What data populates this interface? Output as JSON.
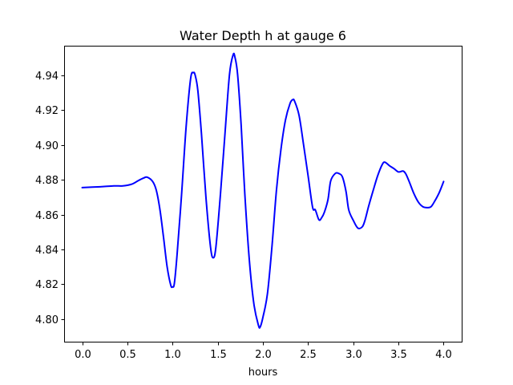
{
  "chart_data": {
    "type": "line",
    "title": "Water Depth h at gauge 6",
    "xlabel": "hours",
    "ylabel": "",
    "xlim": [
      -0.2,
      4.2
    ],
    "ylim": [
      4.787,
      4.957
    ],
    "xticks": [
      0.0,
      0.5,
      1.0,
      1.5,
      2.0,
      2.5,
      3.0,
      3.5,
      4.0
    ],
    "xtick_labels": [
      "0.0",
      "0.5",
      "1.0",
      "1.5",
      "2.0",
      "2.5",
      "3.0",
      "3.5",
      "4.0"
    ],
    "yticks": [
      4.8,
      4.82,
      4.84,
      4.86,
      4.88,
      4.9,
      4.92,
      4.94
    ],
    "ytick_labels": [
      "4.80",
      "4.82",
      "4.84",
      "4.86",
      "4.88",
      "4.90",
      "4.92",
      "4.94"
    ],
    "grid": false,
    "series": [
      {
        "color": "#0000ff",
        "x": [
          0.0,
          0.2,
          0.35,
          0.45,
          0.55,
          0.62,
          0.68,
          0.72,
          0.78,
          0.82,
          0.86,
          0.9,
          0.94,
          0.98,
          1.0,
          1.02,
          1.05,
          1.1,
          1.15,
          1.2,
          1.23,
          1.25,
          1.28,
          1.32,
          1.37,
          1.42,
          1.45,
          1.48,
          1.53,
          1.58,
          1.63,
          1.67,
          1.69,
          1.72,
          1.76,
          1.8,
          1.85,
          1.9,
          1.95,
          1.97,
          2.0,
          2.05,
          2.1,
          2.15,
          2.2,
          2.25,
          2.3,
          2.33,
          2.35,
          2.4,
          2.45,
          2.5,
          2.55,
          2.58,
          2.62,
          2.65,
          2.68,
          2.72,
          2.75,
          2.8,
          2.84,
          2.88,
          2.92,
          2.95,
          3.0,
          3.05,
          3.1,
          3.13,
          3.17,
          3.22,
          3.27,
          3.32,
          3.35,
          3.4,
          3.45,
          3.5,
          3.55,
          3.58,
          3.62,
          3.67,
          3.72,
          3.77,
          3.82,
          3.86,
          3.9,
          3.95,
          4.0
        ],
        "y": [
          4.8755,
          4.876,
          4.8765,
          4.8765,
          4.8775,
          4.8795,
          4.881,
          4.8815,
          4.879,
          4.874,
          4.863,
          4.847,
          4.83,
          4.8195,
          4.8185,
          4.8205,
          4.837,
          4.8717,
          4.9103,
          4.9381,
          4.9415,
          4.9401,
          4.9312,
          4.9063,
          4.8696,
          4.8415,
          4.8352,
          4.8415,
          4.8717,
          4.9063,
          4.9404,
          4.9517,
          4.9505,
          4.9404,
          4.9106,
          4.8717,
          4.8337,
          4.8087,
          4.7965,
          4.7955,
          4.801,
          4.8145,
          4.8415,
          4.8741,
          4.8976,
          4.9144,
          4.9238,
          4.926,
          4.9252,
          4.917,
          4.9001,
          4.8823,
          4.8642,
          4.8627,
          4.857,
          4.8582,
          4.8613,
          4.8686,
          4.8793,
          4.8836,
          4.8836,
          4.8816,
          4.8732,
          4.8627,
          4.8567,
          4.8523,
          4.853,
          4.8568,
          4.8648,
          4.8738,
          4.8823,
          4.8887,
          4.8901,
          4.8881,
          4.8864,
          4.8845,
          4.885,
          4.8835,
          4.8788,
          4.8722,
          4.8672,
          4.8645,
          4.864,
          4.8645,
          4.8676,
          4.8725,
          4.879
        ]
      }
    ]
  }
}
